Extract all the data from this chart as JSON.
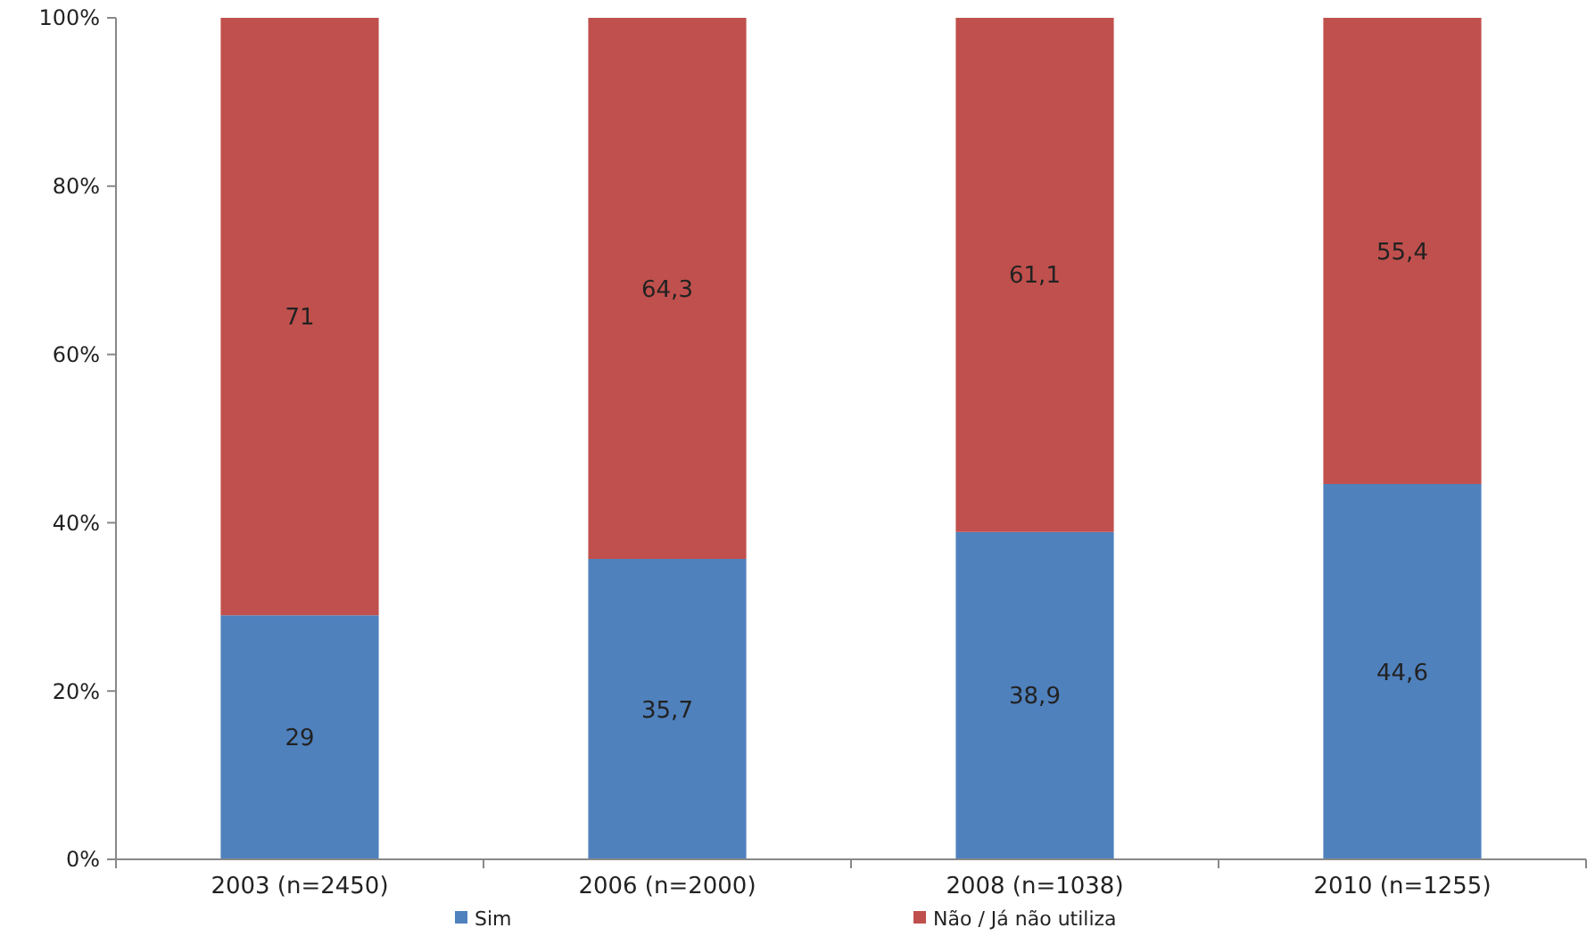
{
  "chart_data": {
    "type": "bar",
    "stacked": true,
    "categories": [
      "2003 (n=2450)",
      "2006 (n=2000)",
      "2008 (n=1038)",
      "2010 (n=1255)"
    ],
    "series": [
      {
        "name": "Sim",
        "color": "#4f81bd",
        "values": [
          29,
          35.7,
          38.9,
          44.6
        ],
        "value_labels": [
          "29",
          "35,7",
          "38,9",
          "44,6"
        ]
      },
      {
        "name": "Não / Já não utiliza",
        "color": "#c0504d",
        "values": [
          71,
          64.3,
          61.1,
          55.4
        ],
        "value_labels": [
          "71",
          "64,3",
          "61,1",
          "55,4"
        ]
      }
    ],
    "ylim": [
      0,
      100
    ],
    "yticks": [
      {
        "value": 0,
        "label": "0%"
      },
      {
        "value": 20,
        "label": "20%"
      },
      {
        "value": 40,
        "label": "40%"
      },
      {
        "value": 60,
        "label": "60%"
      },
      {
        "value": 80,
        "label": "80%"
      },
      {
        "value": 100,
        "label": "100%"
      }
    ],
    "grid": false,
    "legend": "bottom"
  }
}
